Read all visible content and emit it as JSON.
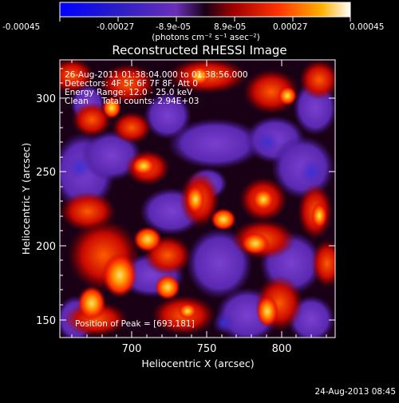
{
  "colorbar": {
    "ticks": [
      "-0.00045",
      "-0.00027",
      "-8.9e-05",
      "8.9e-05",
      "0.00027",
      "0.00045"
    ],
    "unit_label": "(photons cm⁻² s⁻¹ asec⁻²)"
  },
  "title": "Reconstructed RHESSI Image",
  "annotations": {
    "time_range": "26-Aug-2011 01:38:04.000 to 01:38:56.000",
    "detectors": "Detectors: 4F 5F 6F 7F 8F, Att 0",
    "energy_range": "Energy Range: 12.0 - 25.0 keV",
    "clean": "Clean     Total counts: 2.94E+03",
    "peak": "Position of Peak = [693,181]"
  },
  "axes": {
    "x_label": "Heliocentric X (arcsec)",
    "y_label": "Heliocentric Y (arcsec)",
    "x_ticks": [
      "700",
      "750",
      "800"
    ],
    "y_ticks": [
      "150",
      "200",
      "250",
      "300"
    ]
  },
  "footer_timestamp": "24-Aug-2013 08:45",
  "colors": {
    "background": "#000000",
    "text": "#ffffff",
    "negative": "#5a23b4",
    "negative_deep": "#2a1fa0",
    "positive_low": "#9a0000",
    "positive_mid": "#ff3c00",
    "positive_high": "#ffdd55"
  }
}
